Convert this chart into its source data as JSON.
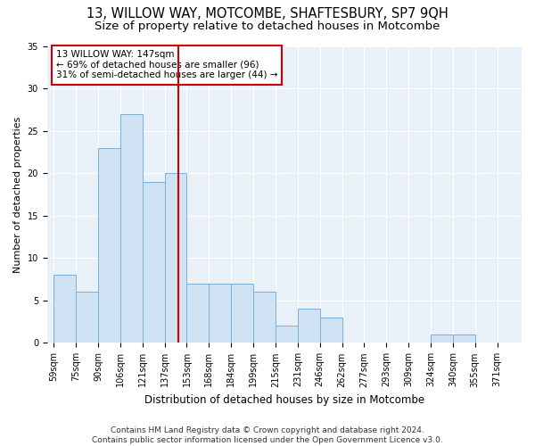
{
  "title": "13, WILLOW WAY, MOTCOMBE, SHAFTESBURY, SP7 9QH",
  "subtitle": "Size of property relative to detached houses in Motcombe",
  "xlabel": "Distribution of detached houses by size in Motcombe",
  "ylabel": "Number of detached properties",
  "bar_labels": [
    "59sqm",
    "75sqm",
    "90sqm",
    "106sqm",
    "121sqm",
    "137sqm",
    "153sqm",
    "168sqm",
    "184sqm",
    "199sqm",
    "215sqm",
    "231sqm",
    "246sqm",
    "262sqm",
    "277sqm",
    "293sqm",
    "309sqm",
    "324sqm",
    "340sqm",
    "355sqm",
    "371sqm"
  ],
  "bar_values": [
    8,
    6,
    23,
    27,
    19,
    20,
    7,
    7,
    7,
    6,
    2,
    4,
    3,
    0,
    0,
    0,
    0,
    1,
    1,
    0,
    0
  ],
  "bar_color": "#cfe2f3",
  "bar_edge_color": "#7bafd4",
  "property_line_x": 5,
  "annotation_text": "13 WILLOW WAY: 147sqm\n← 69% of detached houses are smaller (96)\n31% of semi-detached houses are larger (44) →",
  "annotation_box_color": "#ffffff",
  "annotation_box_edge_color": "#cc0000",
  "vline_color": "#cc0000",
  "ylim": [
    0,
    35
  ],
  "yticks": [
    0,
    5,
    10,
    15,
    20,
    25,
    30,
    35
  ],
  "background_color": "#e8f0f8",
  "grid_color": "#ffffff",
  "title_fontsize": 10.5,
  "subtitle_fontsize": 9.5,
  "xlabel_fontsize": 8.5,
  "ylabel_fontsize": 8,
  "tick_fontsize": 7,
  "annotation_fontsize": 7.5,
  "footer_fontsize": 6.5,
  "footer_text": "Contains HM Land Registry data © Crown copyright and database right 2024.\nContains public sector information licensed under the Open Government Licence v3.0."
}
